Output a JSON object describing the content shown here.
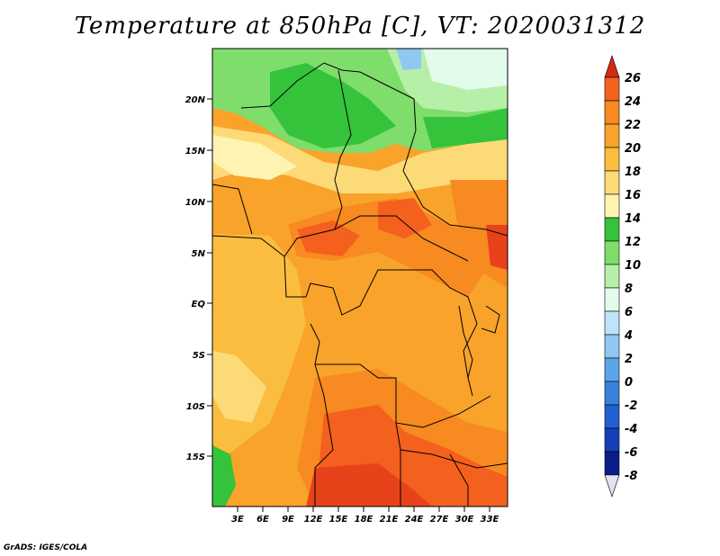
{
  "title": "Temperature at 850hPa [C], VT: 2020031312",
  "credit": "GrADS: IGES/COLA",
  "lat_ticks": [
    "20N",
    "15N",
    "10N",
    "5N",
    "EQ",
    "5S",
    "10S",
    "15S"
  ],
  "lon_ticks": [
    "3E",
    "6E",
    "9E",
    "12E",
    "15E",
    "18E",
    "21E",
    "24E",
    "27E",
    "30E",
    "33E"
  ],
  "colorbar": {
    "levels": [
      {
        "label": "26",
        "color": "#e8421a"
      },
      {
        "label": "24",
        "color": "#f4601e"
      },
      {
        "label": "22",
        "color": "#f78a20"
      },
      {
        "label": "20",
        "color": "#f9a32a"
      },
      {
        "label": "18",
        "color": "#fbbd40"
      },
      {
        "label": "16",
        "color": "#fdda78"
      },
      {
        "label": "14",
        "color": "#fff3b2"
      },
      {
        "label": "12",
        "color": "#36c33c"
      },
      {
        "label": "10",
        "color": "#7fdd6c"
      },
      {
        "label": "8",
        "color": "#b6f0a8"
      },
      {
        "label": "6",
        "color": "#e2fbea"
      },
      {
        "label": "4",
        "color": "#bde4f8"
      },
      {
        "label": "2",
        "color": "#8fc8f2"
      },
      {
        "label": "0",
        "color": "#5aa5e8"
      },
      {
        "label": "-2",
        "color": "#3a82dc"
      },
      {
        "label": "-4",
        "color": "#2060d0"
      },
      {
        "label": "-6",
        "color": "#1440b8"
      },
      {
        "label": "-8",
        "color": "#0a1e88"
      }
    ],
    "top_arrow_color": "#d42a14",
    "bottom_arrow_color": "#e6e0f4"
  }
}
